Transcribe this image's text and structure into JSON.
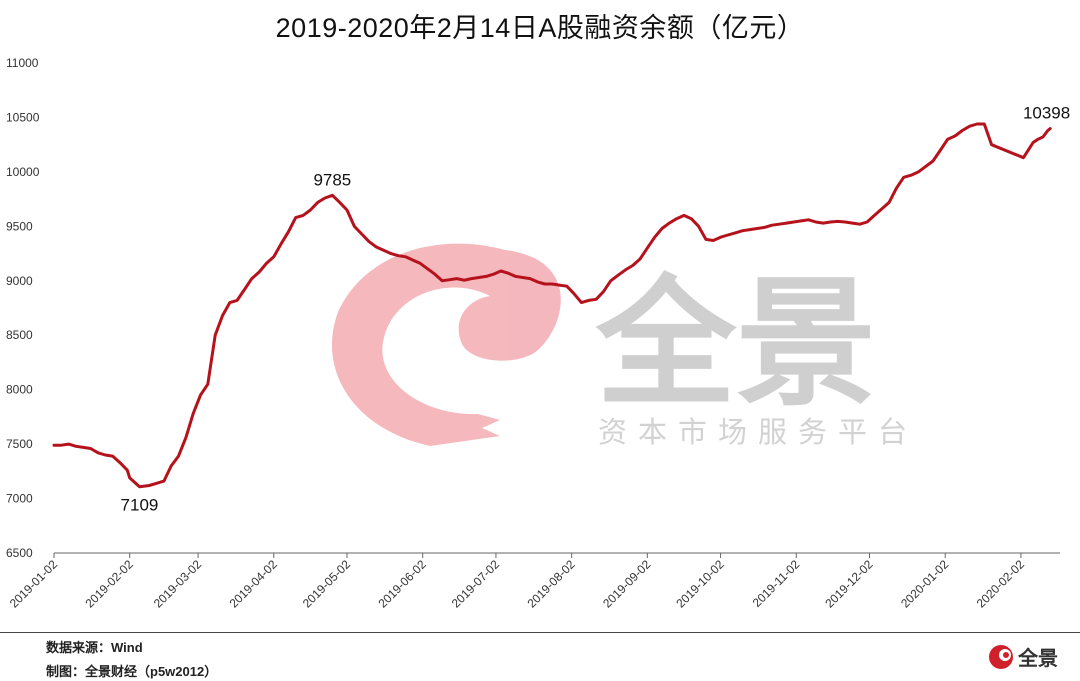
{
  "title": "2019-2020年2月14日A股融资余额（亿元）",
  "watermark": {
    "brand": "全景",
    "subtitle": "资本市场服务平台",
    "color": "#f2a6ad"
  },
  "footer": {
    "source": "数据来源：Wind",
    "credit": "制图：全景财经（p5w2012）",
    "logo_text": "全景"
  },
  "chart_data": {
    "type": "line",
    "title": "2019-2020年2月14日A股融资余额（亿元）",
    "xlabel": "",
    "ylabel": "",
    "ylim": [
      6500,
      11000
    ],
    "yticks": [
      6500,
      7000,
      7500,
      8000,
      8500,
      9000,
      9500,
      10000,
      10500,
      11000
    ],
    "xtick_labels": [
      "2019-01-02",
      "2019-02-02",
      "2019-03-02",
      "2019-04-02",
      "2019-05-02",
      "2019-06-02",
      "2019-07-02",
      "2019-08-02",
      "2019-09-02",
      "2019-10-02",
      "2019-11-02",
      "2019-12-02",
      "2020-01-02",
      "2020-02-02"
    ],
    "grid": false,
    "line_color": "#b5121b",
    "series": [
      {
        "x": [
          "2019-01-02",
          "2019-01-05",
          "2019-01-08",
          "2019-01-11",
          "2019-01-14",
          "2019-01-17",
          "2019-01-20",
          "2019-01-23",
          "2019-01-26",
          "2019-01-29",
          "2019-02-01",
          "2019-02-02",
          "2019-02-06",
          "2019-02-10",
          "2019-02-13",
          "2019-02-16",
          "2019-02-19",
          "2019-02-22",
          "2019-02-25",
          "2019-02-28",
          "2019-03-03",
          "2019-03-06",
          "2019-03-09",
          "2019-03-12",
          "2019-03-15",
          "2019-03-18",
          "2019-03-21",
          "2019-03-24",
          "2019-03-27",
          "2019-03-30",
          "2019-04-02",
          "2019-04-05",
          "2019-04-08",
          "2019-04-11",
          "2019-04-14",
          "2019-04-17",
          "2019-04-20",
          "2019-04-23",
          "2019-04-26",
          "2019-04-29",
          "2019-05-02",
          "2019-05-05",
          "2019-05-08",
          "2019-05-11",
          "2019-05-14",
          "2019-05-17",
          "2019-05-20",
          "2019-05-23",
          "2019-05-26",
          "2019-05-29",
          "2019-06-01",
          "2019-06-04",
          "2019-06-07",
          "2019-06-10",
          "2019-06-13",
          "2019-06-16",
          "2019-06-19",
          "2019-06-22",
          "2019-06-25",
          "2019-06-28",
          "2019-07-01",
          "2019-07-04",
          "2019-07-07",
          "2019-07-10",
          "2019-07-13",
          "2019-07-16",
          "2019-07-19",
          "2019-07-22",
          "2019-07-25",
          "2019-07-28",
          "2019-07-31",
          "2019-08-03",
          "2019-08-06",
          "2019-08-09",
          "2019-08-12",
          "2019-08-15",
          "2019-08-18",
          "2019-08-21",
          "2019-08-24",
          "2019-08-27",
          "2019-08-30",
          "2019-09-02",
          "2019-09-05",
          "2019-09-08",
          "2019-09-11",
          "2019-09-14",
          "2019-09-17",
          "2019-09-20",
          "2019-09-23",
          "2019-09-26",
          "2019-09-29",
          "2019-10-02",
          "2019-10-05",
          "2019-10-08",
          "2019-10-11",
          "2019-10-14",
          "2019-10-17",
          "2019-10-20",
          "2019-10-23",
          "2019-10-26",
          "2019-10-29",
          "2019-11-01",
          "2019-11-04",
          "2019-11-07",
          "2019-11-10",
          "2019-11-13",
          "2019-11-16",
          "2019-11-19",
          "2019-11-22",
          "2019-11-25",
          "2019-11-28",
          "2019-12-01",
          "2019-12-04",
          "2019-12-07",
          "2019-12-10",
          "2019-12-13",
          "2019-12-16",
          "2019-12-19",
          "2019-12-22",
          "2019-12-25",
          "2019-12-28",
          "2019-12-31",
          "2020-01-03",
          "2020-01-06",
          "2020-01-09",
          "2020-01-12",
          "2020-01-15",
          "2020-01-18",
          "2020-01-21",
          "2020-02-03",
          "2020-02-05",
          "2020-02-07",
          "2020-02-09",
          "2020-02-11",
          "2020-02-13",
          "2020-02-14"
        ],
        "values": [
          7490,
          7490,
          7500,
          7480,
          7470,
          7460,
          7420,
          7400,
          7390,
          7330,
          7260,
          7190,
          7109,
          7120,
          7140,
          7160,
          7300,
          7390,
          7560,
          7780,
          7950,
          8050,
          8500,
          8680,
          8800,
          8820,
          8920,
          9020,
          9080,
          9160,
          9220,
          9340,
          9450,
          9580,
          9600,
          9650,
          9720,
          9760,
          9785,
          9720,
          9650,
          9500,
          9430,
          9360,
          9310,
          9280,
          9250,
          9230,
          9220,
          9190,
          9160,
          9110,
          9060,
          9000,
          9010,
          9020,
          9005,
          9020,
          9030,
          9040,
          9060,
          9090,
          9070,
          9040,
          9030,
          9020,
          8990,
          8970,
          8970,
          8960,
          8950,
          8880,
          8800,
          8820,
          8830,
          8900,
          9000,
          9050,
          9100,
          9140,
          9200,
          9300,
          9400,
          9480,
          9530,
          9570,
          9600,
          9570,
          9500,
          9380,
          9370,
          9400,
          9420,
          9440,
          9460,
          9470,
          9480,
          9490,
          9510,
          9520,
          9530,
          9540,
          9550,
          9560,
          9540,
          9530,
          9540,
          9545,
          9540,
          9530,
          9520,
          9540,
          9600,
          9660,
          9720,
          9850,
          9950,
          9970,
          10000,
          10050,
          10100,
          10200,
          10300,
          10330,
          10380,
          10420,
          10440,
          10440,
          10250,
          10130,
          10200,
          10270,
          10300,
          10320,
          10380,
          10398
        ]
      }
    ],
    "annotations": [
      {
        "x": "2019-02-06",
        "y": 7109,
        "text": "7109",
        "position": "below"
      },
      {
        "x": "2019-04-26",
        "y": 9785,
        "text": "9785",
        "position": "above"
      },
      {
        "x": "2020-02-14",
        "y": 10398,
        "text": "10398",
        "position": "above"
      }
    ]
  }
}
